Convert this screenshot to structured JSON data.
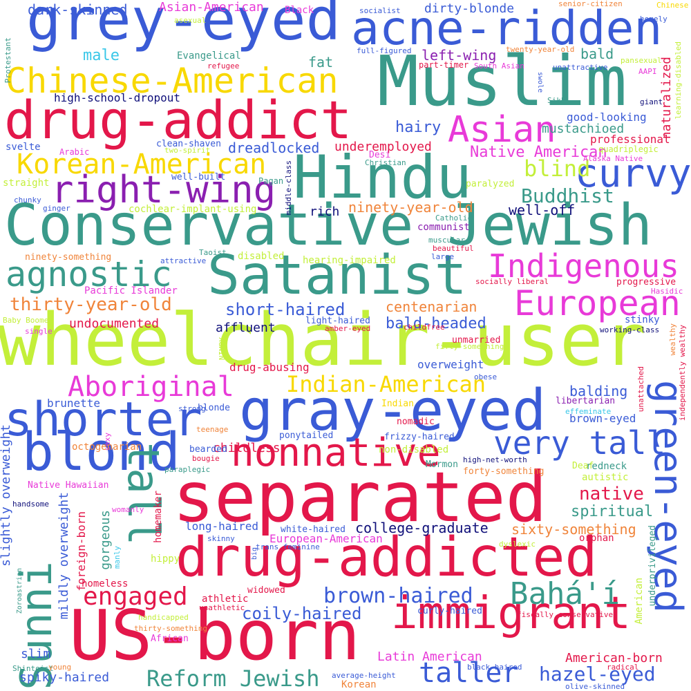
{
  "colors": {
    "blue": "#3a5bd6",
    "teal": "#3a9a8a",
    "crimson": "#e3174a",
    "lime": "#c3ef3a",
    "yellow": "#f8d800",
    "magenta": "#e83ad8",
    "purple": "#8a1fb0",
    "navy": "#10107a",
    "orange": "#f0843a",
    "cyan": "#3ac7e8"
  },
  "words": [
    "grey-eyed",
    "acne-ridden",
    "Muslim",
    "drug-addict",
    "Chinese-American",
    "Asian",
    "Hindu",
    "Conservative Jewish",
    "right-wing",
    "curvy",
    "Korean-American",
    "Satanist",
    "agnostic",
    "Indigenous",
    "European",
    "wheelchair-user",
    "Aboriginal",
    "Indian-American",
    "gray-eyed",
    "shorter",
    "blond",
    "tall",
    "very tall",
    "nonnative",
    "separated",
    "green-eyed",
    "Sunni",
    "drug-addicted",
    "immigrant",
    "US-born",
    "Bahá'í",
    "brown-haired",
    "taller",
    "Reform Jewish",
    "hazel-eyed",
    "engaged",
    "coily-haired",
    "native",
    "spiritual",
    "college-graduate",
    "sixty-something",
    "blind",
    "Buddhist",
    "well-off",
    "ninety-year-old",
    "rich",
    "communist",
    "dreadlocked",
    "underemployed",
    "Native American",
    "mustachioed",
    "good-looking",
    "professional",
    "naturalized",
    "hairy",
    "left-wing",
    "bald",
    "fat",
    "male",
    "dark-skinned",
    "Asian-American",
    "Black",
    "dirty-blonde",
    "socialist",
    "senior-citizen",
    "Chinese",
    "homely",
    "Evangelical",
    "refugee",
    "part-timer",
    "South Asian",
    "twenty-year-old",
    "full-figured",
    "pansexual",
    "unattractive",
    "AAPI",
    "swole",
    "learning-disabled",
    "Sikh",
    "giant",
    "high-school-dropout",
    "svelte",
    "Arabic",
    "two-spirit",
    "clean-shaven",
    "Desi",
    "Christian",
    "Alaska Native",
    "quadriplegic",
    "straight",
    "well-built",
    "Pagan",
    "middle-class",
    "paralyzed",
    "chunky",
    "ginger",
    "cochlear-implant-using",
    "ninety-something",
    "disabled",
    "hearing-impaired",
    "attractive",
    "Taoist",
    "muscular",
    "beautiful",
    "large",
    "Catholic",
    "Pacific Islander",
    "socially liberal",
    "progressive",
    "Hasidic",
    "thirty-year-old",
    "centenarian",
    "short-haired",
    "bald-headed",
    "short",
    "light-haired",
    "stinky",
    "working-class",
    "undocumented",
    "affluent",
    "single",
    "amber-eyed",
    "childfree",
    "unmarried",
    "fifty-something",
    "wealthy",
    "independently wealthy",
    "overweight",
    "Baby Boomer",
    "NIMBY",
    "drug-abusing",
    "obese",
    "unattached",
    "balding",
    "libertarian",
    "brunette",
    "Indian",
    "effeminate",
    "strong",
    "blonde",
    "nomadic",
    "brown-eyed",
    "frizzy-haired",
    "ponytailed",
    "teenage",
    "sexy",
    "bougie",
    "non-disabled",
    "childless",
    "octogenarian",
    "bearded",
    "high-net-worth",
    "redneck",
    "Deaf",
    "Mormon",
    "paraplegic",
    "forty-something",
    "autistic",
    "Native Hawaiian",
    "slightly overweight",
    "mildly overweight",
    "handsome",
    "womanly",
    "gorgeous",
    "foreign-born",
    "homemaker",
    "long-haired",
    "white-haired",
    "European-American",
    "skinny",
    "orphan",
    "dyslexic",
    "trans feminine",
    "underprivileged",
    "American",
    "manly",
    "big",
    "Zoroastrian",
    "homeless",
    "hippy",
    "athletic",
    "unathletic",
    "widowed",
    "curly-haired",
    "fiscally conservative",
    "handicapped",
    "thirty-something",
    "African",
    "radical",
    "slim",
    "Latin American",
    "American-born",
    "spiky-haired",
    "Shintoist",
    "young",
    "Korean",
    "average-height",
    "black-haired",
    "olive-skinned",
    "Protestant",
    "asexual"
  ]
}
